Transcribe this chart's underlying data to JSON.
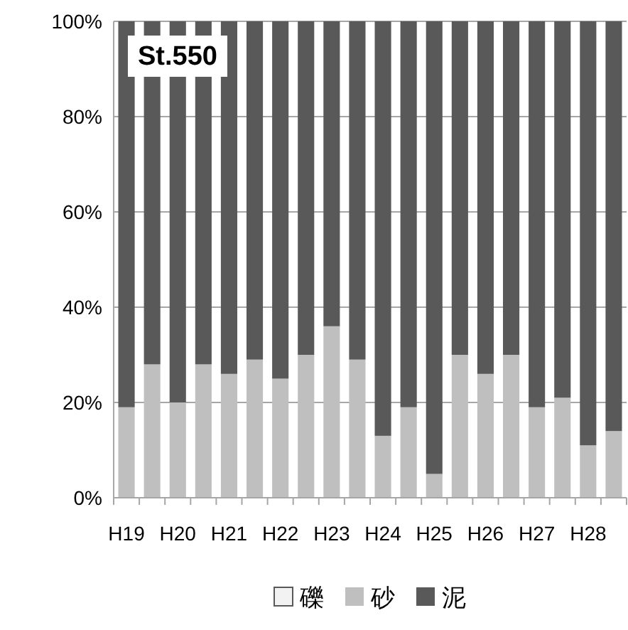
{
  "chart_data": {
    "type": "bar",
    "title": "St.550",
    "stacked": true,
    "categories": [
      "H19",
      null,
      "H20",
      null,
      "H21",
      null,
      "H22",
      null,
      "H23",
      null,
      "H24",
      null,
      "H25",
      null,
      "H26",
      null,
      "H27",
      null,
      "H28",
      null
    ],
    "series": [
      {
        "name": "礫",
        "color": "#f2f2f2",
        "values": [
          0,
          0,
          0,
          0,
          0,
          0,
          0,
          0,
          0,
          0,
          0,
          0,
          0,
          0,
          0,
          0,
          0,
          0,
          0,
          0
        ]
      },
      {
        "name": "砂",
        "color": "#bfbfbf",
        "values": [
          19,
          28,
          20,
          28,
          26,
          29,
          25,
          30,
          36,
          29,
          13,
          19,
          5,
          30,
          26,
          30,
          19,
          21,
          11,
          14
        ]
      },
      {
        "name": "泥",
        "color": "#595959",
        "values": [
          81,
          72,
          80,
          72,
          74,
          71,
          75,
          70,
          64,
          71,
          87,
          81,
          95,
          70,
          74,
          70,
          81,
          79,
          89,
          86
        ]
      }
    ],
    "ylim": [
      0,
      100
    ],
    "yticks": [
      {
        "value": 0,
        "label": "0%"
      },
      {
        "value": 20,
        "label": "20%"
      },
      {
        "value": 40,
        "label": "40%"
      },
      {
        "value": 60,
        "label": "60%"
      },
      {
        "value": 80,
        "label": "80%"
      },
      {
        "value": 100,
        "label": "100%"
      }
    ],
    "grid": "y",
    "legend": "bottom"
  }
}
